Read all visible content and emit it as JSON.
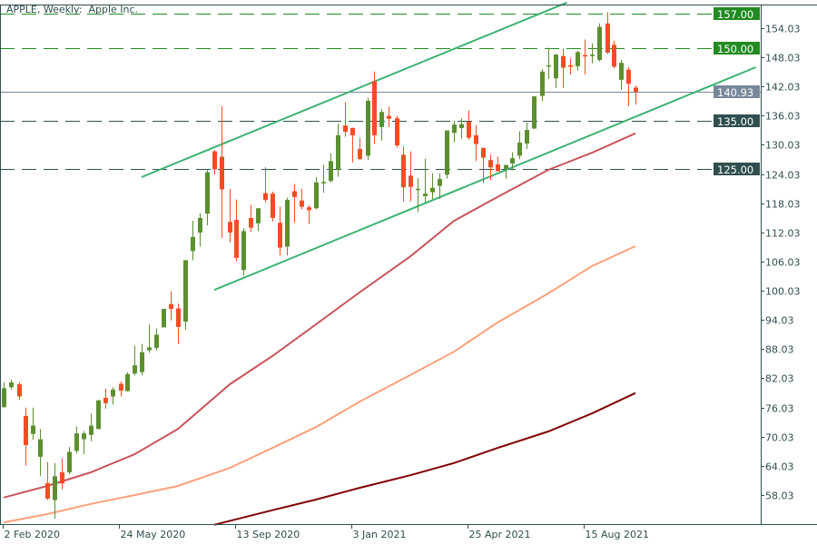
{
  "window": {
    "title": "APPLE, Weekly:  Apple Inc."
  },
  "chart_data": {
    "type": "candlestick",
    "title": "APPLE, Weekly:  Apple Inc.",
    "timeframe": "Weekly",
    "ylim": [
      50.5,
      160.5
    ],
    "y_ticks": [
      "58.03",
      "64.03",
      "70.03",
      "76.03",
      "82.03",
      "88.03",
      "94.03",
      "100.03",
      "106.03",
      "112.03",
      "118.03",
      "124.03",
      "130.03",
      "136.03",
      "142.03",
      "148.03",
      "154.03"
    ],
    "x_ticks": [
      {
        "date": "2020-02-02",
        "label": "2 Feb 2020"
      },
      {
        "date": "2020-05-24",
        "label": "24 May 2020"
      },
      {
        "date": "2020-09-13",
        "label": "13 Sep 2020"
      },
      {
        "date": "2021-01-03",
        "label": "3 Jan 2021"
      },
      {
        "date": "2021-04-25",
        "label": "25 Apr 2021"
      },
      {
        "date": "2021-08-15",
        "label": "15 Aug 2021"
      }
    ],
    "grid": false,
    "colors": {
      "bull": "#5b8f2f",
      "bear": "#f44c24",
      "axis": "#2f4f4f",
      "trendline": "#3cb371",
      "current": "#778899"
    },
    "candles_columns": [
      "date",
      "open",
      "high",
      "low",
      "close"
    ],
    "candles": [
      [
        "2020-02-03",
        76.1,
        81.2,
        76.0,
        80.0
      ],
      [
        "2020-02-10",
        80.2,
        81.8,
        79.7,
        81.2
      ],
      [
        "2020-02-18",
        80.8,
        81.2,
        77.6,
        78.3
      ],
      [
        "2020-02-24",
        74.3,
        76.0,
        64.1,
        68.3
      ],
      [
        "2020-03-02",
        70.6,
        76.0,
        69.4,
        72.3
      ],
      [
        "2020-03-09",
        65.9,
        71.6,
        62.0,
        69.5
      ],
      [
        "2020-03-16",
        60.5,
        64.8,
        57.0,
        57.3
      ],
      [
        "2020-03-23",
        57.0,
        64.6,
        53.2,
        61.9
      ],
      [
        "2020-03-30",
        62.7,
        65.6,
        59.2,
        60.4
      ],
      [
        "2020-04-06",
        62.7,
        67.9,
        62.3,
        66.9
      ],
      [
        "2020-04-13",
        67.1,
        72.1,
        66.6,
        70.7
      ],
      [
        "2020-04-20",
        69.5,
        71.2,
        66.4,
        70.7
      ],
      [
        "2020-04-27",
        70.4,
        74.8,
        69.1,
        72.3
      ],
      [
        "2020-05-04",
        71.6,
        77.6,
        71.6,
        77.5
      ],
      [
        "2020-05-11",
        78.0,
        79.9,
        75.8,
        76.9
      ],
      [
        "2020-05-18",
        78.3,
        80.2,
        76.6,
        79.7
      ],
      [
        "2020-05-26",
        80.9,
        81.4,
        78.3,
        79.5
      ],
      [
        "2020-06-01",
        79.4,
        83.3,
        79.3,
        82.9
      ],
      [
        "2020-06-08",
        83.0,
        88.7,
        82.6,
        84.7
      ],
      [
        "2020-06-15",
        83.3,
        89.1,
        82.6,
        87.4
      ],
      [
        "2020-06-22",
        87.8,
        93.1,
        87.3,
        88.4
      ],
      [
        "2020-06-29",
        88.3,
        92.3,
        87.8,
        91.0
      ],
      [
        "2020-07-06",
        92.5,
        96.3,
        92.5,
        96.3
      ],
      [
        "2020-07-13",
        97.3,
        99.9,
        93.9,
        96.3
      ],
      [
        "2020-07-20",
        96.4,
        97.4,
        89.1,
        92.6
      ],
      [
        "2020-07-27",
        93.7,
        106.4,
        92.0,
        106.3
      ],
      [
        "2020-08-03",
        108.2,
        114.4,
        106.3,
        111.1
      ],
      [
        "2020-08-10",
        112.0,
        116.0,
        109.1,
        115.0
      ],
      [
        "2020-08-17",
        115.9,
        125.0,
        113.5,
        124.4
      ],
      [
        "2020-08-24",
        128.7,
        129.0,
        123.9,
        125.0
      ],
      [
        "2020-08-31",
        127.6,
        138.0,
        110.9,
        120.9
      ],
      [
        "2020-09-08",
        114.2,
        121.0,
        110.0,
        112.0
      ],
      [
        "2020-09-14",
        114.6,
        118.8,
        106.1,
        106.8
      ],
      [
        "2020-09-21",
        104.3,
        112.9,
        103.1,
        112.3
      ],
      [
        "2020-09-28",
        115.0,
        117.7,
        112.2,
        113.0
      ],
      [
        "2020-10-05",
        113.9,
        117.0,
        112.3,
        117.0
      ],
      [
        "2020-10-12",
        120.1,
        125.4,
        118.2,
        118.7
      ],
      [
        "2020-10-19",
        120.0,
        120.4,
        114.3,
        115.0
      ],
      [
        "2020-10-26",
        114.0,
        117.3,
        107.3,
        108.9
      ],
      [
        "2020-11-02",
        109.1,
        119.2,
        107.3,
        118.7
      ],
      [
        "2020-11-09",
        120.5,
        122.0,
        114.1,
        119.3
      ],
      [
        "2020-11-16",
        118.6,
        121.0,
        116.8,
        117.3
      ],
      [
        "2020-11-23",
        117.2,
        117.6,
        113.8,
        116.6
      ],
      [
        "2020-11-30",
        117.0,
        123.4,
        116.8,
        122.3
      ],
      [
        "2020-12-07",
        122.3,
        125.9,
        120.2,
        122.4
      ],
      [
        "2020-12-14",
        122.6,
        128.3,
        122.3,
        126.7
      ],
      [
        "2020-12-21",
        125.0,
        134.4,
        123.5,
        132.0
      ],
      [
        "2020-12-28",
        134.0,
        138.8,
        131.7,
        132.7
      ],
      [
        "2021-01-04",
        133.5,
        133.6,
        126.4,
        132.0
      ],
      [
        "2021-01-11",
        129.2,
        131.5,
        126.9,
        127.1
      ],
      [
        "2021-01-19",
        127.8,
        139.7,
        126.9,
        139.1
      ],
      [
        "2021-01-25",
        143.1,
        145.1,
        130.2,
        132.0
      ],
      [
        "2021-02-01",
        133.7,
        137.4,
        130.9,
        136.8
      ],
      [
        "2021-02-08",
        136.0,
        137.9,
        133.7,
        135.4
      ],
      [
        "2021-02-16",
        135.5,
        136.0,
        129.5,
        129.9
      ],
      [
        "2021-02-22",
        128.0,
        129.7,
        118.4,
        121.3
      ],
      [
        "2021-03-01",
        123.7,
        128.7,
        118.4,
        121.4
      ],
      [
        "2021-03-08",
        120.9,
        123.2,
        116.2,
        121.0
      ],
      [
        "2021-03-15",
        119.5,
        127.2,
        118.2,
        120.0
      ],
      [
        "2021-03-22",
        120.3,
        124.2,
        118.9,
        121.2
      ],
      [
        "2021-03-29",
        121.6,
        124.2,
        118.9,
        123.0
      ],
      [
        "2021-04-05",
        123.9,
        133.0,
        123.1,
        133.0
      ],
      [
        "2021-04-12",
        132.5,
        135.0,
        130.6,
        134.2
      ],
      [
        "2021-04-19",
        133.5,
        135.5,
        131.3,
        134.3
      ],
      [
        "2021-04-26",
        134.8,
        137.1,
        131.1,
        131.5
      ],
      [
        "2021-05-03",
        132.0,
        134.1,
        126.7,
        130.2
      ],
      [
        "2021-05-10",
        129.4,
        129.5,
        122.2,
        127.4
      ],
      [
        "2021-05-17",
        126.9,
        128.0,
        122.8,
        125.4
      ],
      [
        "2021-05-24",
        126.0,
        127.6,
        124.9,
        124.6
      ],
      [
        "2021-06-01",
        125.1,
        125.3,
        123.1,
        125.9
      ],
      [
        "2021-06-07",
        126.2,
        128.5,
        124.8,
        127.3
      ],
      [
        "2021-06-14",
        127.8,
        132.8,
        127.1,
        130.5
      ],
      [
        "2021-06-21",
        130.3,
        134.6,
        129.2,
        133.1
      ],
      [
        "2021-06-28",
        133.4,
        140.0,
        133.3,
        140.0
      ],
      [
        "2021-07-06",
        140.1,
        145.6,
        139.0,
        145.1
      ],
      [
        "2021-07-12",
        146.2,
        150.0,
        143.6,
        146.4
      ],
      [
        "2021-07-19",
        143.7,
        148.7,
        141.7,
        148.6
      ],
      [
        "2021-07-26",
        148.3,
        149.8,
        141.7,
        145.9
      ],
      [
        "2021-08-02",
        146.4,
        147.8,
        144.5,
        146.1
      ],
      [
        "2021-08-09",
        146.2,
        149.4,
        145.3,
        149.1
      ],
      [
        "2021-08-16",
        148.5,
        151.7,
        144.5,
        148.2
      ],
      [
        "2021-08-23",
        148.3,
        150.9,
        146.8,
        148.6
      ],
      [
        "2021-08-30",
        147.5,
        155.0,
        147.2,
        154.3
      ],
      [
        "2021-09-07",
        155.0,
        157.3,
        148.7,
        149.0
      ],
      [
        "2021-09-13",
        150.6,
        151.4,
        145.8,
        146.1
      ],
      [
        "2021-09-20",
        143.4,
        147.5,
        141.3,
        146.9
      ],
      [
        "2021-09-27",
        145.5,
        146.0,
        138.0,
        142.6
      ],
      [
        "2021-10-04",
        141.8,
        142.2,
        138.3,
        140.93
      ]
    ],
    "moving_averages": [
      {
        "color": "#c8565c",
        "points": [
          [
            "2020-02-03",
            57.5
          ],
          [
            "2020-03-16",
            59.9
          ],
          [
            "2020-04-27",
            62.7
          ],
          [
            "2020-06-08",
            66.4
          ],
          [
            "2020-07-20",
            71.6
          ],
          [
            "2020-09-08",
            80.8
          ],
          [
            "2020-10-19",
            86.6
          ],
          [
            "2020-11-30",
            93.1
          ],
          [
            "2021-01-11",
            99.7
          ],
          [
            "2021-03-01",
            107.1
          ],
          [
            "2021-04-12",
            114.4
          ],
          [
            "2021-05-24",
            119.3
          ],
          [
            "2021-07-12",
            124.9
          ],
          [
            "2021-08-23",
            128.4
          ],
          [
            "2021-10-04",
            132.4
          ]
        ]
      },
      {
        "color": "#ffa07a",
        "points": [
          [
            "2020-02-03",
            52.4
          ],
          [
            "2020-03-16",
            54.1
          ],
          [
            "2020-04-27",
            56.2
          ],
          [
            "2020-06-08",
            58.0
          ],
          [
            "2020-07-20",
            59.9
          ],
          [
            "2020-09-08",
            63.6
          ],
          [
            "2020-10-19",
            67.7
          ],
          [
            "2020-11-30",
            72.0
          ],
          [
            "2021-01-11",
            77.2
          ],
          [
            "2021-03-01",
            82.7
          ],
          [
            "2021-04-12",
            87.5
          ],
          [
            "2021-05-24",
            93.5
          ],
          [
            "2021-07-12",
            99.5
          ],
          [
            "2021-08-23",
            105.1
          ],
          [
            "2021-10-04",
            109.2
          ]
        ]
      },
      {
        "color": "#800000",
        "points": [
          [
            "2020-08-24",
            51.9
          ],
          [
            "2020-10-19",
            54.9
          ],
          [
            "2020-11-30",
            57.1
          ],
          [
            "2021-01-11",
            59.5
          ],
          [
            "2021-03-01",
            62.1
          ],
          [
            "2021-04-12",
            64.6
          ],
          [
            "2021-05-24",
            67.7
          ],
          [
            "2021-07-12",
            71.1
          ],
          [
            "2021-08-23",
            74.8
          ],
          [
            "2021-10-04",
            79.0
          ]
        ]
      }
    ],
    "trendlines": [
      {
        "name": "channel-upper",
        "from": [
          "2020-06-15",
          123.4
        ],
        "to": [
          "2021-07-30",
          159.3
        ]
      },
      {
        "name": "channel-lower",
        "from": [
          "2020-08-24",
          100.2
        ],
        "to": [
          "2022-01-28",
          146.0
        ]
      }
    ],
    "levels": [
      {
        "value": 157.0,
        "label": "157.00",
        "color": "#228b22",
        "style": "dashed"
      },
      {
        "value": 150.0,
        "label": "150.00",
        "color": "#228b22",
        "style": "dashed"
      },
      {
        "value": 135.0,
        "label": "135.00",
        "color": "#2f4f4f",
        "style": "dashed"
      },
      {
        "value": 125.0,
        "label": "125.00",
        "color": "#2f4f4f",
        "style": "dashed"
      }
    ],
    "current_price": {
      "value": 140.93,
      "label": "140.93",
      "color": "#778899"
    }
  }
}
